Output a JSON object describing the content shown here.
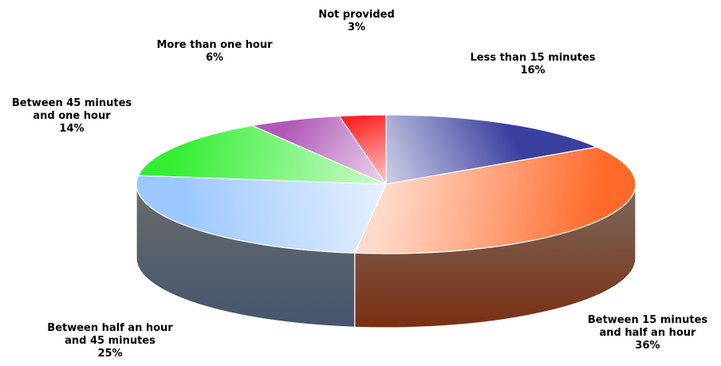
{
  "chart_data": {
    "type": "pie",
    "title": "",
    "legend": "none",
    "slices": [
      {
        "label_lines": [
          "Less than 15 minutes"
        ],
        "value": 16,
        "value_label": "16%",
        "color": "#3a3f9e"
      },
      {
        "label_lines": [
          "Between 15 minutes",
          "and half an hour"
        ],
        "value": 36,
        "value_label": "36%",
        "color": "#ff6a2a"
      },
      {
        "label_lines": [
          "Between half an hour",
          "and 45 minutes"
        ],
        "value": 25,
        "value_label": "25%",
        "color": "#9cc8ff"
      },
      {
        "label_lines": [
          "Between 45 minutes",
          "and one hour"
        ],
        "value": 14,
        "value_label": "14%",
        "color": "#33ee33"
      },
      {
        "label_lines": [
          "More than one hour"
        ],
        "value": 6,
        "value_label": "6%",
        "color": "#b05ab8"
      },
      {
        "label_lines": [
          "Not provided"
        ],
        "value": 3,
        "value_label": "3%",
        "color": "#ff2222"
      }
    ]
  }
}
